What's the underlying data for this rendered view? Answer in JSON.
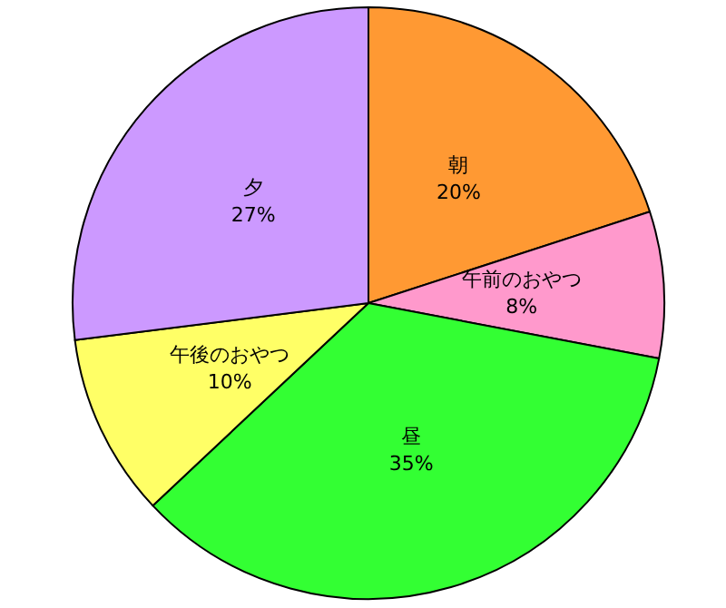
{
  "chart_data": {
    "type": "pie",
    "categories": [
      "朝",
      "午前のおやつ",
      "昼",
      "午後のおやつ",
      "夕"
    ],
    "values": [
      20,
      8,
      35,
      10,
      27
    ],
    "value_labels": [
      "20%",
      "8%",
      "35%",
      "10%",
      "27%"
    ],
    "colors": [
      "#ff9933",
      "#ff99cc",
      "#33ff33",
      "#ffff66",
      "#cc99ff"
    ],
    "legend": false
  }
}
